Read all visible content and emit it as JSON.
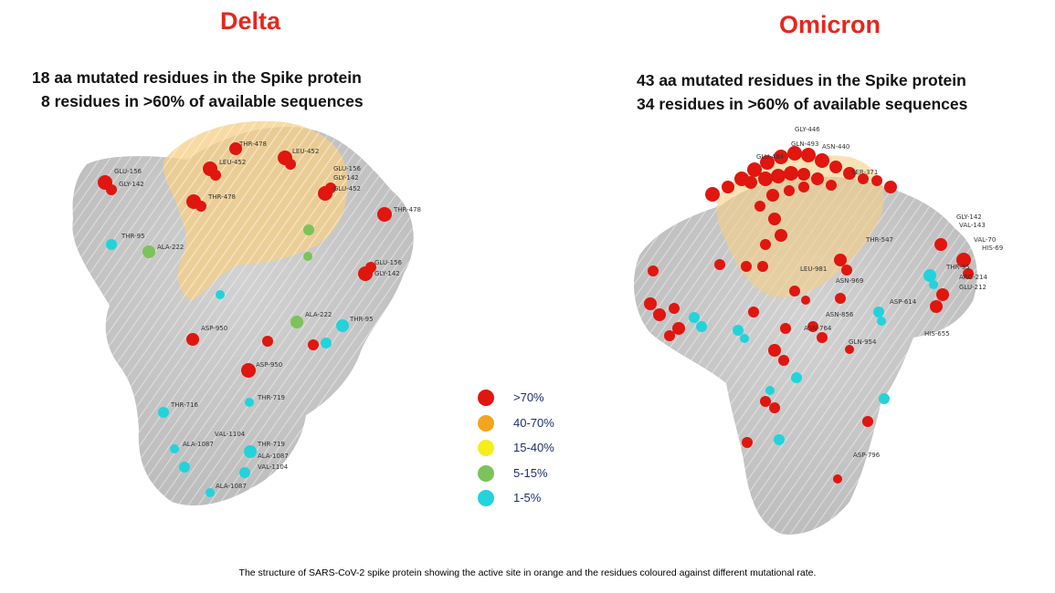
{
  "panels": {
    "delta": {
      "title": "Delta",
      "line1": "18 aa mutated residues in the Spike protein",
      "line2": "8 residues in >60% of available sequences",
      "residue_labels": [
        "GLU-156",
        "GLY-142",
        "THR-478",
        "LEU-452",
        "LEU-452",
        "GLU-156",
        "GLY-142",
        "GLU-452",
        "THR-478",
        "THR-478",
        "THR-95",
        "ALA-222",
        "GLU-156",
        "GLY-142",
        "ALA-222",
        "ASP-950",
        "THR-95",
        "ASP-950",
        "THR-716",
        "THR-719",
        "VAL-1104",
        "ALA-1087",
        "THR-719",
        "ALA-1087",
        "VAL-1104",
        "ALA-1087"
      ]
    },
    "omicron": {
      "title": "Omicron",
      "line1": "43 aa mutated residues in the Spike protein",
      "line2": "34 residues in >60% of available sequences",
      "residue_labels": [
        "GLY-446",
        "GLN-493",
        "ASN-440",
        "GLU-484",
        "SER-371",
        "GLY-142",
        "VAL-143",
        "THR-547",
        "VAL-70",
        "HIS-69",
        "THR-95",
        "ARG-214",
        "GLU-212",
        "LEU-981",
        "ASN-969",
        "ASP-614",
        "ASN-856",
        "ASN-764",
        "GLN-954",
        "HIS-655",
        "ASP-796"
      ]
    }
  },
  "legend": [
    {
      "label": ">70%",
      "color": "#e0160f"
    },
    {
      "label": "40-70%",
      "color": "#f3a51e"
    },
    {
      "label": "15-40%",
      "color": "#f5ee1c"
    },
    {
      "label": "5-15%",
      "color": "#7bc35a"
    },
    {
      "label": "1-5%",
      "color": "#22d3dc"
    }
  ],
  "caption": "The structure of SARS-CoV-2 spike protein showing the active site in orange and the residues coloured against different mutational rate."
}
